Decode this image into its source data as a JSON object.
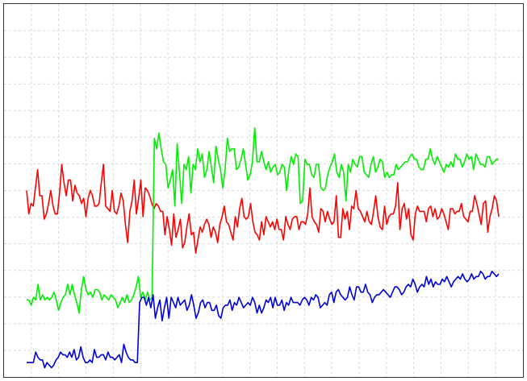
{
  "chart_data": {
    "type": "line",
    "grid": true,
    "xlim": [
      1,
      200
    ],
    "ylim": [
      0,
      14
    ],
    "series": [
      {
        "color": "#ff0000",
        "values": [
          7.0,
          6.1,
          6.5,
          6.4,
          7.1,
          7.8,
          6.8,
          6.8,
          5.9,
          6.1,
          6.5,
          7.0,
          6.4,
          6.1,
          6.1,
          6.9,
          8.0,
          7.3,
          6.8,
          7.4,
          7.4,
          6.6,
          7.2,
          6.9,
          6.8,
          6.5,
          6.7,
          6.0,
          6.7,
          7.0,
          6.8,
          6.4,
          6.4,
          6.5,
          7.3,
          8.0,
          6.4,
          6.3,
          6.2,
          7.0,
          6.2,
          6.1,
          6.4,
          6.9,
          6.6,
          5.7,
          5.0,
          6.2,
          6.6,
          7.4,
          6.1,
          6.7,
          7.4,
          6.0,
          7.1,
          7.0,
          6.8,
          6.5,
          6.3,
          6.5,
          6.4,
          6.2,
          6.2,
          5.3,
          6.0,
          5.5,
          4.9,
          6.1,
          5.2,
          5.5,
          5.9,
          4.8,
          5.0,
          5.6,
          6.1,
          5.3,
          5.4,
          4.6,
          5.1,
          5.6,
          5.4,
          5.7,
          5.9,
          5.7,
          5.2,
          5.6,
          5.4,
          5.0,
          5.7,
          6.0,
          6.4,
          5.8,
          5.7,
          5.4,
          5.1,
          6.0,
          5.6,
          6.3,
          6.7,
          6.0,
          5.9,
          6.0,
          6.5,
          5.8,
          5.4,
          5.3,
          5.1,
          5.8,
          5.3,
          6.0,
          5.8,
          5.6,
          5.8,
          5.5,
          5.9,
          5.5,
          5.5,
          5.1,
          6.0,
          5.7,
          5.5,
          5.9,
          6.0,
          6.0,
          5.5,
          5.8,
          5.8,
          5.7,
          6.1,
          7.1,
          6.0,
          5.8,
          5.7,
          5.4,
          6.3,
          6.2,
          5.8,
          6.2,
          5.9,
          5.7,
          5.8,
          6.8,
          5.2,
          5.2,
          6.3,
          5.9,
          6.2,
          5.5,
          6.4,
          6.3,
          7.0,
          6.3,
          6.2,
          6.0,
          5.8,
          6.2,
          5.8,
          5.7,
          6.2,
          6.8,
          6.0,
          5.6,
          5.5,
          6.4,
          5.7,
          6.0,
          6.1,
          6.1,
          6.4,
          7.3,
          5.5,
          6.3,
          6.5,
          5.9,
          6.3,
          5.3,
          5.1,
          6.1,
          6.4,
          6.2,
          6.2,
          6.2,
          5.8,
          6.3,
          6.4,
          6.0,
          6.3,
          5.9,
          6.0,
          6.3,
          6.1,
          5.8,
          5.5,
          6.3,
          6.3,
          6.1,
          6.2,
          6.2,
          6.5,
          6.0,
          5.9,
          5.8,
          6.2,
          6.2,
          6.8,
          6.5,
          6.1,
          5.7,
          6.5,
          6.6,
          5.4,
          6.0,
          6.3,
          6.8,
          6.6,
          6.0
        ]
      },
      {
        "color": "#00ee00",
        "values": [
          2.8,
          2.8,
          2.6,
          2.9,
          2.8,
          3.4,
          2.8,
          3.0,
          2.8,
          2.9,
          2.8,
          2.9,
          3.1,
          2.8,
          2.4,
          2.7,
          2.9,
          3.0,
          3.4,
          3.0,
          3.4,
          3.0,
          2.7,
          2.3,
          3.2,
          3.7,
          3.2,
          3.0,
          3.1,
          2.9,
          3.2,
          3.2,
          3.1,
          2.8,
          3.0,
          2.9,
          2.8,
          3.0,
          2.9,
          2.8,
          2.5,
          2.7,
          2.9,
          2.7,
          3.0,
          2.7,
          2.8,
          3.0,
          3.3,
          3.7,
          2.9,
          3.1,
          2.8,
          3.1,
          2.8,
          2.9,
          9.0,
          8.6,
          9.2,
          8.6,
          8.1,
          8.0,
          7.1,
          7.4,
          7.8,
          6.4,
          8.8,
          7.7,
          6.5,
          8.0,
          7.8,
          8.3,
          6.9,
          8.0,
          7.8,
          8.6,
          8.1,
          8.4,
          7.5,
          7.8,
          8.5,
          7.9,
          7.3,
          8.7,
          8.2,
          7.8,
          7.1,
          7.8,
          9.0,
          8.5,
          8.6,
          8.6,
          7.8,
          7.9,
          8.2,
          8.6,
          8.0,
          7.4,
          7.6,
          8.1,
          9.4,
          8.1,
          8.1,
          8.5,
          8.1,
          7.8,
          8.1,
          7.7,
          7.9,
          8.0,
          7.6,
          7.7,
          8.0,
          7.9,
          7.0,
          7.8,
          8.3,
          8.0,
          8.4,
          8.3,
          6.5,
          6.6,
          8.2,
          8.0,
          8.0,
          7.6,
          7.5,
          8.0,
          8.0,
          7.1,
          7.0,
          7.1,
          7.6,
          7.9,
          8.1,
          8.4,
          7.7,
          7.5,
          8.0,
          7.7,
          6.6,
          8.0,
          7.7,
          8.2,
          8.0,
          7.9,
          8.3,
          8.3,
          7.7,
          7.6,
          7.5,
          8.0,
          8.3,
          7.7,
          7.9,
          8.2,
          8.1,
          7.5,
          7.7,
          7.5,
          7.6,
          7.6,
          8.0,
          7.8,
          7.9,
          8.0,
          8.1,
          8.1,
          8.3,
          8.4,
          8.2,
          8.2,
          7.9,
          7.8,
          7.8,
          8.2,
          8.2,
          8.6,
          8.2,
          8.0,
          8.3,
          8.1,
          7.9,
          7.7,
          8.0,
          7.9,
          8.1,
          7.9,
          8.4,
          8.2,
          8.2,
          7.9,
          8.1,
          8.4,
          8.2,
          8.3,
          7.8,
          8.4,
          8.2,
          8.0,
          8.0,
          7.9,
          8.3,
          8.3,
          8.0,
          8.1,
          8.2,
          8.2
        ]
      },
      {
        "color": "#0000dd",
        "values": [
          0.4,
          0.4,
          0.4,
          0.4,
          0.8,
          0.6,
          0.5,
          0.5,
          0.2,
          0.4,
          0.3,
          0.2,
          0.3,
          0.5,
          0.6,
          0.8,
          0.7,
          0.7,
          0.6,
          0.8,
          0.6,
          0.9,
          0.5,
          0.6,
          1.0,
          0.6,
          0.4,
          0.4,
          0.5,
          0.4,
          0.9,
          0.6,
          0.6,
          0.7,
          0.7,
          0.5,
          0.8,
          0.6,
          0.6,
          0.5,
          0.6,
          0.7,
          0.4,
          1.1,
          0.8,
          0.6,
          0.5,
          0.5,
          0.4,
          0.4,
          2.7,
          2.9,
          2.9,
          2.6,
          2.9,
          2.5,
          3.0,
          2.1,
          2.5,
          2.8,
          2.0,
          2.5,
          2.9,
          2.1,
          2.9,
          2.7,
          2.5,
          2.9,
          2.6,
          2.7,
          2.8,
          2.4,
          2.6,
          3.0,
          2.6,
          2.1,
          2.3,
          2.7,
          2.8,
          2.5,
          2.7,
          2.7,
          2.4,
          2.4,
          2.6,
          2.2,
          2.1,
          2.5,
          2.6,
          2.6,
          2.8,
          2.4,
          2.7,
          2.6,
          2.9,
          2.7,
          2.5,
          2.6,
          2.7,
          2.6,
          2.9,
          2.7,
          2.3,
          2.6,
          2.3,
          2.5,
          2.8,
          2.7,
          2.9,
          2.5,
          2.9,
          2.6,
          2.6,
          2.8,
          2.4,
          2.7,
          2.6,
          2.9,
          2.7,
          2.7,
          2.7,
          2.6,
          2.8,
          2.9,
          2.8,
          2.6,
          2.9,
          2.8,
          3.0,
          2.9,
          2.5,
          2.6,
          2.7,
          2.6,
          3.0,
          3.1,
          2.7,
          3.1,
          3.2,
          3.0,
          2.9,
          2.8,
          2.9,
          3.3,
          3.0,
          2.8,
          3.3,
          3.3,
          3.1,
          3.1,
          3.4,
          3.1,
          3.0,
          2.7,
          2.9,
          3.0,
          3.0,
          3.1,
          3.2,
          3.1,
          3.0,
          2.9,
          3.1,
          3.3,
          3.3,
          3.2,
          3.0,
          3.1,
          3.3,
          3.4,
          3.3,
          3.6,
          3.4,
          3.1,
          3.3,
          3.4,
          3.3,
          3.7,
          3.4,
          3.6,
          3.3,
          3.5,
          3.4,
          3.4,
          3.6,
          3.5,
          3.7,
          3.5,
          3.3,
          3.5,
          3.6,
          3.7,
          3.6,
          3.8,
          3.6,
          3.5,
          3.6,
          3.8,
          3.6,
          3.7,
          3.7,
          3.9,
          3.8,
          3.6,
          3.7,
          3.7,
          3.9,
          3.8,
          3.7,
          3.8
        ]
      }
    ]
  }
}
